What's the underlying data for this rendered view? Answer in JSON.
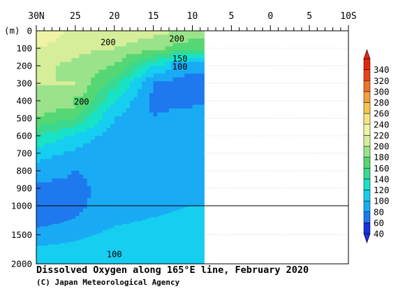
{
  "chart_data": {
    "type": "heatmap",
    "title": "Dissolved Oxygen along 165°E line, February 2020",
    "credit": "(C) Japan Meteorological Agency",
    "x_axis": {
      "position": "top",
      "range": [
        30,
        -10
      ],
      "tick_labels": [
        "30N",
        "25",
        "20",
        "15",
        "10",
        "5",
        "0",
        "5",
        "10S"
      ],
      "tick_values": [
        30,
        25,
        20,
        15,
        10,
        5,
        0,
        -5,
        -10
      ],
      "minor_step": 1
    },
    "y_axis": {
      "unit_label": "(m)",
      "upper_range": [
        0,
        1000
      ],
      "lower_range": [
        1000,
        2000
      ],
      "tick_labels": [
        "0",
        "100",
        "200",
        "300",
        "400",
        "500",
        "600",
        "700",
        "800",
        "900",
        "1000",
        "1500",
        "2000"
      ],
      "tick_values": [
        0,
        100,
        200,
        300,
        400,
        500,
        600,
        700,
        800,
        900,
        1000,
        1500,
        2000
      ]
    },
    "data_extent_latitude": [
      30,
      8.5
    ],
    "grid": "dotted horizontal lines at depth ticks",
    "colorbar": {
      "position": "right",
      "levels": [
        40,
        60,
        80,
        100,
        120,
        140,
        160,
        180,
        200,
        220,
        240,
        260,
        280,
        300,
        320,
        340
      ],
      "tick_labels": [
        "340",
        "320",
        "300",
        "280",
        "260",
        "240",
        "220",
        "200",
        "180",
        "160",
        "140",
        "120",
        "100",
        "80",
        "60",
        "40"
      ],
      "colors": [
        "#1a32d8",
        "#1e78ee",
        "#19abf4",
        "#16cef0",
        "#18e3c6",
        "#3ad98f",
        "#55d773",
        "#9be38a",
        "#d6ee9a",
        "#eef4a4",
        "#f6e484",
        "#f4c455",
        "#f2a03e",
        "#ed7428",
        "#e64419",
        "#e12810"
      ]
    },
    "contour_labels": [
      {
        "text": "200",
        "lat": 20.8,
        "depth": 65
      },
      {
        "text": "200",
        "lat": 12.0,
        "depth": 45
      },
      {
        "text": "150",
        "lat": 11.6,
        "depth": 160
      },
      {
        "text": "100",
        "lat": 11.6,
        "depth": 205
      },
      {
        "text": "200",
        "lat": 24.2,
        "depth": 405
      },
      {
        "text": "100",
        "lat": 20.0,
        "depth": 1840
      }
    ],
    "sections": [
      {
        "lat": 30,
        "depth": [
          0,
          100,
          200,
          300,
          400,
          500,
          600,
          700,
          800,
          900,
          1000,
          1200,
          1500,
          1800,
          2000
        ],
        "do": [
          240,
          220,
          205,
          200,
          195,
          180,
          140,
          110,
          90,
          75,
          60,
          65,
          90,
          105,
          115
        ]
      },
      {
        "lat": 25,
        "depth": [
          0,
          100,
          200,
          300,
          400,
          500,
          600,
          700,
          800,
          900,
          1000,
          1200,
          1500,
          1800,
          2000
        ],
        "do": [
          215,
          205,
          195,
          200,
          190,
          160,
          115,
          95,
          80,
          75,
          75,
          80,
          95,
          108,
          118
        ]
      },
      {
        "lat": 20,
        "depth": [
          0,
          100,
          200,
          300,
          400,
          500,
          600,
          700,
          800,
          900,
          1000,
          1200,
          1500,
          1800,
          2000
        ],
        "do": [
          210,
          200,
          180,
          150,
          120,
          100,
          90,
          85,
          85,
          88,
          90,
          95,
          105,
          112,
          120
        ]
      },
      {
        "lat": 15,
        "depth": [
          0,
          100,
          200,
          300,
          400,
          500,
          600,
          700,
          800,
          900,
          1000,
          1200,
          1500,
          1800,
          2000
        ],
        "do": [
          205,
          190,
          120,
          80,
          75,
          80,
          85,
          88,
          90,
          92,
          95,
          100,
          108,
          115,
          120
        ]
      },
      {
        "lat": 10,
        "depth": [
          0,
          100,
          200,
          300,
          400,
          500,
          600,
          700,
          800,
          900,
          1000,
          1200,
          1500,
          1800,
          2000
        ],
        "do": [
          200,
          160,
          90,
          65,
          75,
          90,
          95,
          95,
          95,
          98,
          100,
          105,
          110,
          115,
          118
        ]
      }
    ]
  }
}
